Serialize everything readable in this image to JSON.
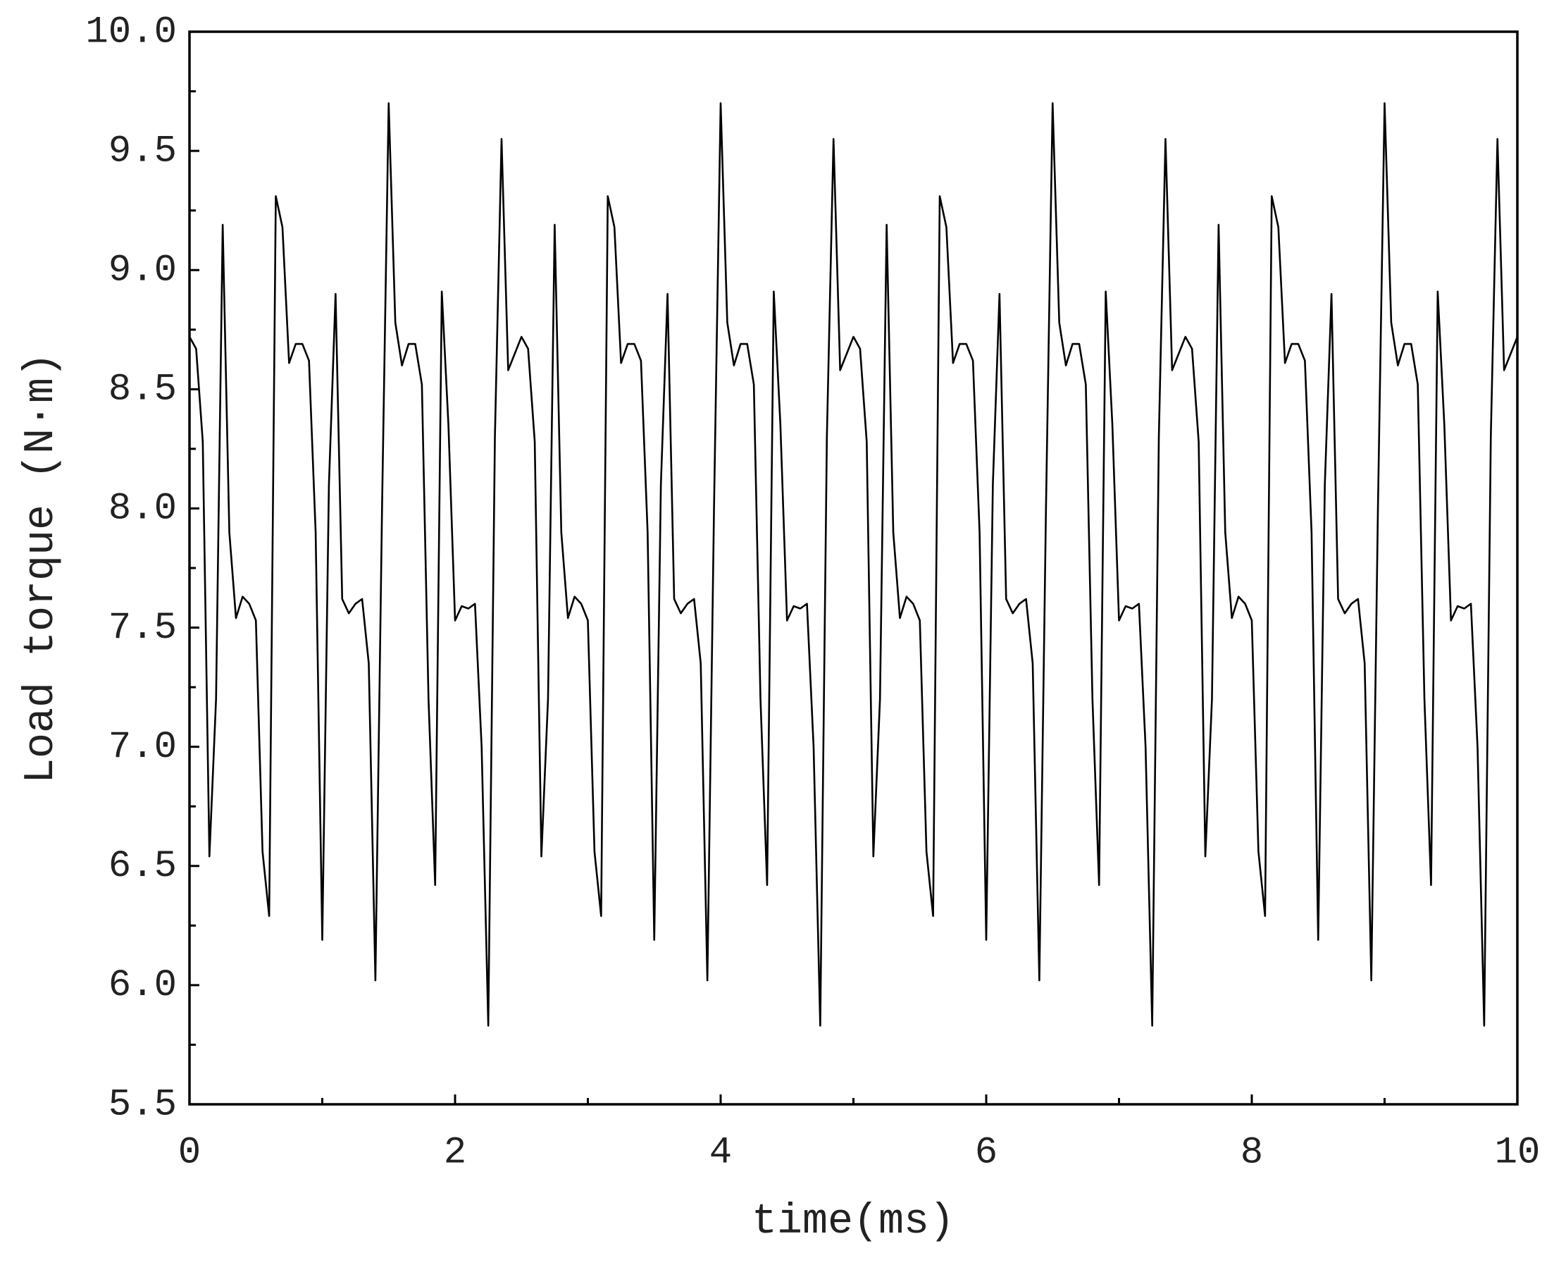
{
  "chart_data": {
    "type": "line",
    "x_label": "time(ms)",
    "y_label": "Load torque (N·m)",
    "x": [
      0,
      0.05,
      0.1,
      0.15,
      0.2,
      0.25,
      0.3,
      0.35,
      0.4,
      0.45,
      0.5,
      0.55,
      0.6,
      0.65,
      0.7,
      0.75,
      0.8,
      0.85,
      0.9,
      0.95,
      1,
      1.05,
      1.1,
      1.15,
      1.2,
      1.25,
      1.3,
      1.35,
      1.4,
      1.45,
      1.5,
      1.55,
      1.6,
      1.65,
      1.7,
      1.75,
      1.8,
      1.85,
      1.9,
      1.95,
      2,
      2.05,
      2.1,
      2.15,
      2.2,
      2.25,
      2.3,
      2.35,
      2.4,
      2.45,
      2.5,
      2.55,
      2.6,
      2.65,
      2.7,
      2.75,
      2.8,
      2.85,
      2.9,
      2.95,
      3,
      3.05,
      3.1,
      3.15,
      3.2,
      3.25,
      3.3,
      3.35,
      3.4,
      3.45,
      3.5,
      3.55,
      3.6,
      3.65,
      3.7,
      3.75,
      3.8,
      3.85,
      3.9,
      3.95,
      4,
      4.05,
      4.1,
      4.15,
      4.2,
      4.25,
      4.3,
      4.35,
      4.4,
      4.45,
      4.5,
      4.55,
      4.6,
      4.65,
      4.7,
      4.75,
      4.8,
      4.85,
      4.9,
      4.95,
      5,
      5.05,
      5.1,
      5.15,
      5.2,
      5.25,
      5.3,
      5.35,
      5.4,
      5.45,
      5.5,
      5.55,
      5.6,
      5.65,
      5.7,
      5.75,
      5.8,
      5.85,
      5.9,
      5.95,
      6,
      6.05,
      6.1,
      6.15,
      6.2,
      6.25,
      6.3,
      6.35,
      6.4,
      6.45,
      6.5,
      6.55,
      6.6,
      6.65,
      6.7,
      6.75,
      6.8,
      6.85,
      6.9,
      6.95,
      7,
      7.05,
      7.1,
      7.15,
      7.2,
      7.25,
      7.3,
      7.35,
      7.4,
      7.45,
      7.5,
      7.55,
      7.6,
      7.65,
      7.7,
      7.75,
      7.8,
      7.85,
      7.9,
      7.95,
      8,
      8.05,
      8.1,
      8.15,
      8.2,
      8.25,
      8.3,
      8.35,
      8.4,
      8.45,
      8.5,
      8.55,
      8.6,
      8.65,
      8.7,
      8.75,
      8.8,
      8.85,
      8.9,
      8.95,
      9,
      9.05,
      9.1,
      9.15,
      9.2,
      9.25,
      9.3,
      9.35,
      9.4,
      9.45,
      9.5,
      9.55,
      9.6,
      9.65,
      9.7,
      9.75,
      9.8,
      9.85,
      9.9,
      9.95,
      10
    ],
    "series": [
      {
        "color": "#000000",
        "values": [
          8.72,
          8.67,
          8.28,
          6.54,
          7.2,
          9.19,
          7.9,
          7.54,
          7.63,
          7.6,
          7.53,
          6.56,
          6.29,
          9.31,
          9.18,
          8.61,
          8.69,
          8.69,
          8.62,
          7.9,
          6.19,
          8.1,
          8.9,
          7.62,
          7.56,
          7.6,
          7.62,
          7.35,
          6.02,
          8.0,
          9.7,
          8.78,
          8.6,
          8.69,
          8.69,
          8.52,
          7.2,
          6.42,
          8.91,
          8.35,
          7.53,
          7.59,
          7.58,
          7.6,
          7.0,
          5.83,
          8.3,
          9.55,
          8.58,
          8.65,
          8.72,
          8.67,
          8.28,
          6.54,
          7.2,
          9.19,
          7.9,
          7.54,
          7.63,
          7.6,
          7.53,
          6.56,
          6.29,
          9.31,
          9.18,
          8.61,
          8.69,
          8.69,
          8.62,
          7.9,
          6.19,
          8.1,
          8.9,
          7.62,
          7.56,
          7.6,
          7.62,
          7.35,
          6.02,
          8.0,
          9.7,
          8.78,
          8.6,
          8.69,
          8.69,
          8.52,
          7.2,
          6.42,
          8.91,
          8.35,
          7.53,
          7.59,
          7.58,
          7.6,
          7.0,
          5.83,
          8.3,
          9.55,
          8.58,
          8.65,
          8.72,
          8.67,
          8.28,
          6.54,
          7.2,
          9.19,
          7.9,
          7.54,
          7.63,
          7.6,
          7.53,
          6.56,
          6.29,
          9.31,
          9.18,
          8.61,
          8.69,
          8.69,
          8.62,
          7.9,
          6.19,
          8.1,
          8.9,
          7.62,
          7.56,
          7.6,
          7.62,
          7.35,
          6.02,
          8.0,
          9.7,
          8.78,
          8.6,
          8.69,
          8.69,
          8.52,
          7.2,
          6.42,
          8.91,
          8.35,
          7.53,
          7.59,
          7.58,
          7.6,
          7.0,
          5.83,
          8.3,
          9.55,
          8.58,
          8.65,
          8.72,
          8.67,
          8.28,
          6.54,
          7.2,
          9.19,
          7.9,
          7.54,
          7.63,
          7.6,
          7.53,
          6.56,
          6.29,
          9.31,
          9.18,
          8.61,
          8.69,
          8.69,
          8.62,
          7.9,
          6.19,
          8.1,
          8.9,
          7.62,
          7.56,
          7.6,
          7.62,
          7.35,
          6.02,
          8.0,
          9.7,
          8.78,
          8.6,
          8.69,
          8.69,
          8.52,
          7.2,
          6.42,
          8.91,
          8.35,
          7.53,
          7.59,
          7.58,
          7.6,
          7.0,
          5.83,
          8.3,
          9.55,
          8.58,
          8.65,
          8.72
        ]
      }
    ],
    "xlim": [
      0,
      10
    ],
    "xticks": [
      0,
      2,
      4,
      6,
      8,
      10
    ],
    "xminorticks": [
      1,
      3,
      5,
      7,
      9
    ],
    "ylim": [
      5.5,
      10
    ],
    "yticks": [
      5.5,
      {
        "value": 6,
        "label": "6.0"
      },
      6.5,
      {
        "value": 7,
        "label": "7.0"
      },
      7.5,
      {
        "value": 8,
        "label": "8.0"
      },
      8.5,
      {
        "value": 9,
        "label": "9.0"
      },
      9.5,
      {
        "value": 10,
        "label": "10.0"
      }
    ],
    "yminorticks": [
      5.75,
      6.25,
      6.75,
      7.25,
      7.75,
      8.25,
      8.75,
      9.25,
      9.75
    ],
    "grid": false
  }
}
